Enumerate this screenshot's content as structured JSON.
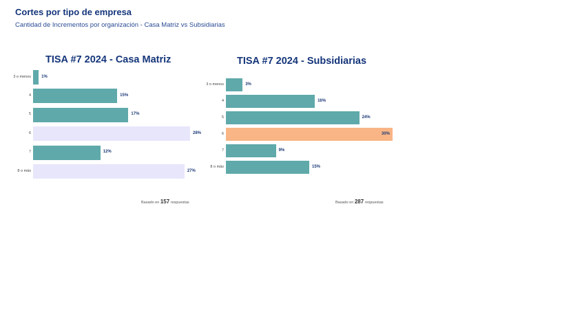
{
  "header": {
    "title": "Cortes por tipo de empresa",
    "subtitle": "Cantidad de Incrementos por organización - Casa Matriz vs Subsidiarias"
  },
  "colors": {
    "bar_default": "#5fa9aa",
    "bar_light": "#e8e6fb",
    "bar_highlight": "#f9b585",
    "title": "#14357a"
  },
  "chart_data": [
    {
      "type": "bar",
      "orientation": "horizontal",
      "title": "TISA #7 2024 - Casa Matriz",
      "categories": [
        "3 o menos",
        "4",
        "5",
        "6",
        "7",
        "8 o más"
      ],
      "values": [
        1,
        15,
        17,
        28,
        12,
        27
      ],
      "value_labels": [
        "1%",
        "15%",
        "17%",
        "28%",
        "12%",
        "27%"
      ],
      "bar_styles": [
        "default",
        "default",
        "default",
        "light",
        "default",
        "light"
      ],
      "footnote": {
        "prefix": "Basado en",
        "count": "157",
        "suffix": "respuestas"
      },
      "xlim": [
        0,
        28
      ]
    },
    {
      "type": "bar",
      "orientation": "horizontal",
      "title": "TISA #7 2024 - Subsidiarias",
      "categories": [
        "3 o menos",
        "4",
        "5",
        "6",
        "7",
        "8 o más"
      ],
      "values": [
        3,
        16,
        24,
        30,
        9,
        15
      ],
      "value_labels": [
        "3%",
        "16%",
        "24%",
        "30%",
        "9%",
        "15%"
      ],
      "bar_styles": [
        "default",
        "default",
        "default",
        "highlight",
        "default",
        "default"
      ],
      "footnote": {
        "prefix": "Basado en",
        "count": "287",
        "suffix": "respuestas"
      },
      "xlim": [
        0,
        30
      ]
    }
  ]
}
